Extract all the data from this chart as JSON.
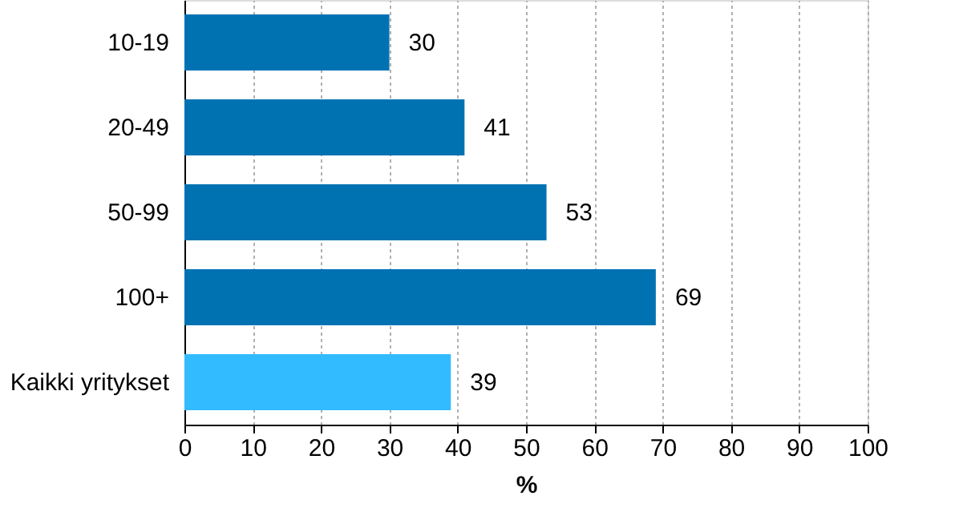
{
  "chart_data": {
    "type": "bar",
    "orientation": "horizontal",
    "xlabel": "%",
    "categories": [
      "10-19",
      "20-49",
      "50-99",
      "100+",
      "Kaikki yritykset"
    ],
    "values": [
      30,
      41,
      53,
      69,
      39
    ],
    "colors": [
      "#0072b2",
      "#0072b2",
      "#0072b2",
      "#0072b2",
      "#33bbff"
    ],
    "xlim": [
      0,
      100
    ],
    "xticks": [
      0,
      10,
      20,
      30,
      40,
      50,
      60,
      70,
      80,
      90,
      100
    ],
    "grid": "x",
    "data_labels": true
  }
}
